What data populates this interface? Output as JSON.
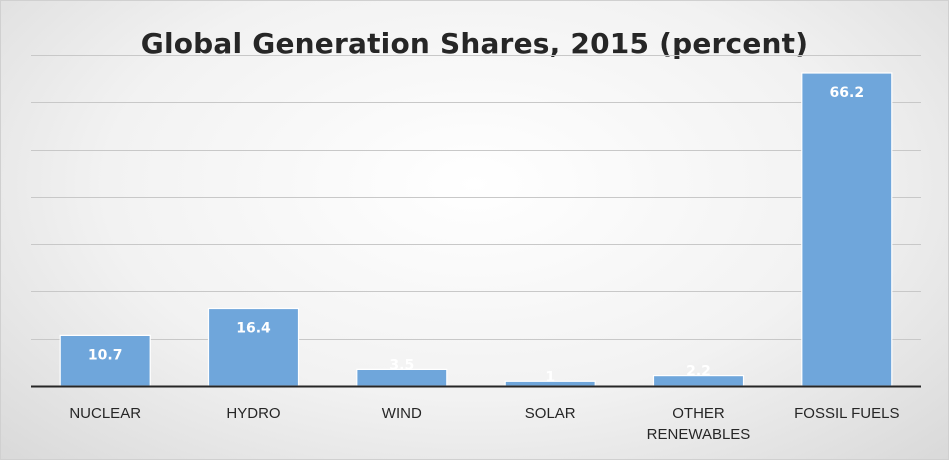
{
  "chart_data": {
    "type": "bar",
    "title": "Global Generation Shares, 2015 (percent)",
    "categories": [
      [
        "NUCLEAR"
      ],
      [
        "HYDRO"
      ],
      [
        "WIND"
      ],
      [
        "SOLAR"
      ],
      [
        "OTHER",
        "RENEWABLES"
      ],
      [
        "FOSSIL FUELS"
      ]
    ],
    "values": [
      10.7,
      16.4,
      3.5,
      1,
      2.2,
      66.2
    ],
    "ylim": [
      0,
      70
    ],
    "grid": true,
    "show_y_tick_labels": false,
    "bar_color": "#6fa6db",
    "bar_edge_color": "#ffffff",
    "data_label_color": "#ffffff"
  }
}
